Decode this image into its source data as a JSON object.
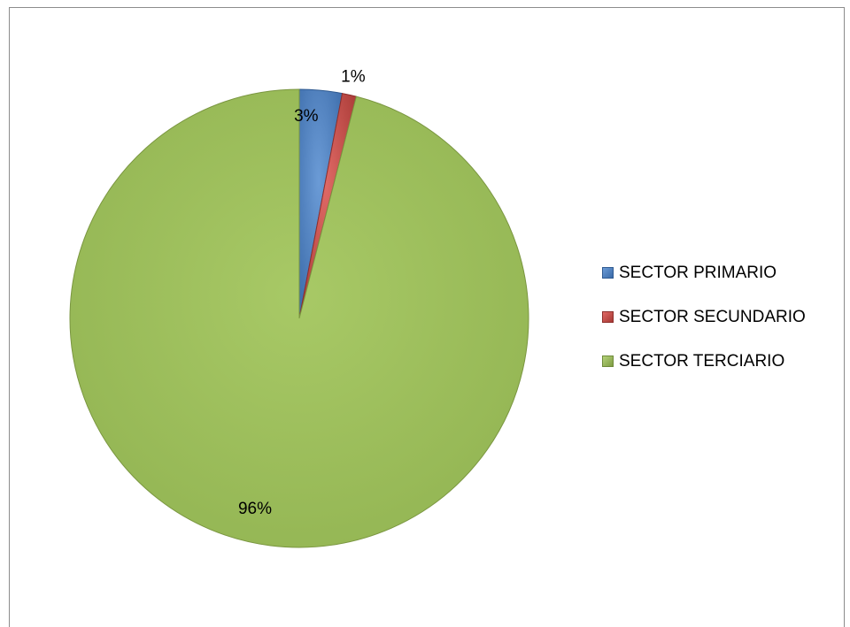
{
  "chart_data": {
    "type": "pie",
    "title": "",
    "categories": [
      "SECTOR PRIMARIO",
      "SECTOR SECUNDARIO",
      "SECTOR TERCIARIO"
    ],
    "values": [
      3,
      1,
      96
    ],
    "data_labels": [
      "3%",
      "1%",
      "96%"
    ],
    "colors": [
      "#4f81bd",
      "#c0504d",
      "#9bbb59"
    ],
    "legend_position": "right",
    "start_angle": "top, clockwise"
  }
}
